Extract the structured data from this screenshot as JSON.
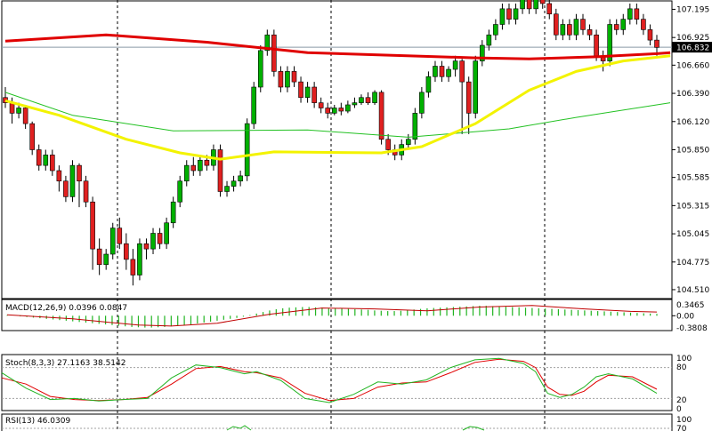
{
  "chart_data": {
    "type": "candlestick",
    "price_panel": {
      "ylim": [
        104.45,
        107.25
      ],
      "yticks": [
        "107.195",
        "106.925",
        "106.660",
        "106.390",
        "106.120",
        "105.850",
        "105.585",
        "105.315",
        "105.045",
        "104.775",
        "104.510"
      ],
      "current_price": "106.832",
      "level_line": 106.832,
      "candles": [
        [
          106.35,
          106.3,
          106.45,
          106.25
        ],
        [
          106.3,
          106.2,
          106.35,
          106.1
        ],
        [
          106.2,
          106.25,
          106.3,
          106.15
        ],
        [
          106.25,
          106.1,
          106.28,
          106.05
        ],
        [
          106.1,
          105.85,
          106.12,
          105.8
        ],
        [
          105.85,
          105.7,
          105.9,
          105.65
        ],
        [
          105.7,
          105.8,
          105.85,
          105.65
        ],
        [
          105.8,
          105.65,
          105.85,
          105.6
        ],
        [
          105.65,
          105.55,
          105.7,
          105.45
        ],
        [
          105.55,
          105.4,
          105.6,
          105.35
        ],
        [
          105.4,
          105.7,
          105.75,
          105.35
        ],
        [
          105.7,
          105.55,
          105.72,
          105.3
        ],
        [
          105.55,
          105.35,
          105.6,
          105.3
        ],
        [
          105.35,
          104.9,
          105.4,
          104.7
        ],
        [
          104.9,
          104.75,
          105.0,
          104.65
        ],
        [
          104.75,
          104.85,
          104.9,
          104.7
        ],
        [
          104.85,
          105.1,
          105.15,
          104.8
        ],
        [
          105.1,
          104.95,
          105.2,
          104.9
        ],
        [
          104.95,
          104.8,
          105.05,
          104.7
        ],
        [
          104.8,
          104.65,
          104.9,
          104.55
        ],
        [
          104.65,
          104.95,
          105.0,
          104.6
        ],
        [
          104.95,
          104.9,
          105.0,
          104.8
        ],
        [
          104.9,
          105.05,
          105.1,
          104.85
        ],
        [
          105.05,
          104.95,
          105.1,
          104.9
        ],
        [
          104.95,
          105.15,
          105.2,
          104.9
        ],
        [
          105.15,
          105.35,
          105.4,
          105.1
        ],
        [
          105.35,
          105.55,
          105.6,
          105.3
        ],
        [
          105.55,
          105.7,
          105.75,
          105.5
        ],
        [
          105.7,
          105.65,
          105.78,
          105.6
        ],
        [
          105.65,
          105.75,
          105.8,
          105.6
        ],
        [
          105.75,
          105.7,
          105.8,
          105.65
        ],
        [
          105.7,
          105.85,
          105.9,
          105.65
        ],
        [
          105.85,
          105.45,
          105.9,
          105.4
        ],
        [
          105.45,
          105.5,
          105.55,
          105.4
        ],
        [
          105.5,
          105.55,
          105.6,
          105.45
        ],
        [
          105.55,
          105.6,
          105.65,
          105.5
        ],
        [
          105.6,
          106.1,
          106.15,
          105.55
        ],
        [
          106.1,
          106.45,
          106.5,
          106.05
        ],
        [
          106.45,
          106.8,
          106.85,
          106.4
        ],
        [
          106.8,
          106.95,
          107.0,
          106.75
        ],
        [
          106.95,
          106.6,
          107.0,
          106.55
        ],
        [
          106.6,
          106.45,
          106.65,
          106.4
        ],
        [
          106.45,
          106.6,
          106.65,
          106.4
        ],
        [
          106.6,
          106.5,
          106.65,
          106.45
        ],
        [
          106.5,
          106.35,
          106.55,
          106.3
        ],
        [
          106.35,
          106.45,
          106.5,
          106.3
        ],
        [
          106.45,
          106.3,
          106.5,
          106.25
        ],
        [
          106.3,
          106.25,
          106.35,
          106.2
        ],
        [
          106.25,
          106.2,
          106.3,
          106.15
        ],
        [
          106.2,
          106.25,
          106.28,
          106.18
        ],
        [
          106.25,
          106.22,
          106.3,
          106.18
        ],
        [
          106.22,
          106.28,
          106.32,
          106.2
        ],
        [
          106.28,
          106.3,
          106.35,
          106.25
        ],
        [
          106.3,
          106.35,
          106.38,
          106.28
        ],
        [
          106.35,
          106.3,
          106.4,
          106.28
        ],
        [
          106.3,
          106.4,
          106.42,
          106.28
        ],
        [
          106.4,
          105.95,
          106.42,
          105.9
        ],
        [
          105.95,
          105.85,
          106.0,
          105.8
        ],
        [
          105.85,
          105.8,
          105.9,
          105.75
        ],
        [
          105.8,
          105.9,
          105.95,
          105.75
        ],
        [
          105.9,
          105.95,
          106.0,
          105.85
        ],
        [
          105.95,
          106.2,
          106.25,
          105.9
        ],
        [
          106.2,
          106.4,
          106.45,
          106.15
        ],
        [
          106.4,
          106.55,
          106.6,
          106.35
        ],
        [
          106.55,
          106.65,
          106.7,
          106.5
        ],
        [
          106.65,
          106.55,
          106.7,
          106.5
        ],
        [
          106.55,
          106.62,
          106.65,
          106.5
        ],
        [
          106.62,
          106.7,
          106.75,
          106.55
        ],
        [
          106.7,
          106.5,
          106.72,
          106.0
        ],
        [
          106.5,
          106.2,
          106.55,
          106.0
        ],
        [
          106.2,
          106.7,
          106.75,
          106.15
        ],
        [
          106.7,
          106.85,
          106.9,
          106.65
        ],
        [
          106.85,
          106.95,
          107.0,
          106.8
        ],
        [
          106.95,
          107.05,
          107.1,
          106.9
        ],
        [
          107.05,
          107.2,
          107.25,
          107.0
        ],
        [
          107.2,
          107.1,
          107.25,
          107.05
        ],
        [
          107.1,
          107.2,
          107.25,
          107.05
        ],
        [
          107.2,
          107.3,
          107.35,
          107.15
        ],
        [
          107.3,
          107.2,
          107.35,
          107.15
        ],
        [
          107.2,
          107.3,
          107.35,
          107.15
        ],
        [
          107.3,
          107.25,
          107.35,
          107.2
        ],
        [
          107.25,
          107.15,
          107.3,
          107.1
        ],
        [
          107.15,
          106.95,
          107.2,
          106.9
        ],
        [
          106.95,
          107.05,
          107.1,
          106.9
        ],
        [
          107.05,
          106.95,
          107.1,
          106.9
        ],
        [
          106.95,
          107.1,
          107.15,
          106.9
        ],
        [
          107.1,
          107.0,
          107.15,
          106.95
        ],
        [
          107.0,
          106.95,
          107.05,
          106.9
        ],
        [
          106.95,
          106.75,
          107.0,
          106.7
        ],
        [
          106.75,
          106.7,
          106.8,
          106.6
        ],
        [
          106.7,
          107.05,
          107.1,
          106.65
        ],
        [
          107.05,
          107.0,
          107.1,
          106.95
        ],
        [
          107.0,
          107.1,
          107.15,
          106.95
        ],
        [
          107.1,
          107.2,
          107.25,
          107.05
        ],
        [
          107.2,
          107.1,
          107.25,
          107.05
        ],
        [
          107.1,
          107.0,
          107.15,
          106.95
        ],
        [
          107.0,
          106.9,
          107.05,
          106.85
        ],
        [
          106.9,
          106.83,
          106.95,
          106.75
        ]
      ],
      "ma_slow": [
        [
          0,
          106.89
        ],
        [
          15,
          106.95
        ],
        [
          30,
          106.88
        ],
        [
          45,
          106.78
        ],
        [
          55,
          106.76
        ],
        [
          70,
          106.73
        ],
        [
          78,
          106.72
        ],
        [
          88,
          106.74
        ],
        [
          97,
          106.77
        ],
        [
          99,
          106.78
        ]
      ],
      "ma_medium": [
        [
          0,
          106.32
        ],
        [
          8,
          106.18
        ],
        [
          18,
          105.95
        ],
        [
          26,
          105.82
        ],
        [
          32,
          105.76
        ],
        [
          40,
          105.83
        ],
        [
          56,
          105.82
        ],
        [
          62,
          105.88
        ],
        [
          70,
          106.1
        ],
        [
          78,
          106.42
        ],
        [
          85,
          106.6
        ],
        [
          92,
          106.7
        ],
        [
          99,
          106.75
        ]
      ],
      "ma_fast": [
        [
          0,
          106.4
        ],
        [
          10,
          106.18
        ],
        [
          25,
          106.03
        ],
        [
          45,
          106.04
        ],
        [
          60,
          105.97
        ],
        [
          75,
          106.05
        ],
        [
          85,
          106.16
        ],
        [
          99,
          106.3
        ]
      ]
    },
    "macd_panel": {
      "label": "MACD(12,26,9) 0.0396 0.0847",
      "ylim": [
        -0.42,
        0.38
      ],
      "yticks": [
        "0.3465",
        "0.00",
        "-0.3808"
      ],
      "histogram": [
        0.02,
        0.0,
        -0.02,
        -0.04,
        -0.06,
        -0.08,
        -0.1,
        -0.12,
        -0.14,
        -0.16,
        -0.18,
        -0.2,
        -0.22,
        -0.24,
        -0.26,
        -0.28,
        -0.3,
        -0.32,
        -0.34,
        -0.36,
        -0.37,
        -0.38,
        -0.38,
        -0.37,
        -0.36,
        -0.34,
        -0.32,
        -0.3,
        -0.28,
        -0.25,
        -0.22,
        -0.19,
        -0.16,
        -0.13,
        -0.1,
        -0.07,
        -0.03,
        0.02,
        0.07,
        0.12,
        0.17,
        0.21,
        0.24,
        0.26,
        0.27,
        0.28,
        0.28,
        0.27,
        0.26,
        0.25,
        0.24,
        0.23,
        0.22,
        0.21,
        0.2,
        0.19,
        0.17,
        0.16,
        0.15,
        0.15,
        0.16,
        0.18,
        0.2,
        0.22,
        0.24,
        0.25,
        0.26,
        0.27,
        0.28,
        0.29,
        0.3,
        0.31,
        0.32,
        0.32,
        0.31,
        0.3,
        0.29,
        0.28,
        0.27,
        0.26,
        0.25,
        0.24,
        0.23,
        0.22,
        0.21,
        0.2,
        0.19,
        0.18,
        0.17,
        0.16,
        0.15,
        0.14,
        0.13,
        0.12,
        0.11,
        0.1,
        0.09,
        0.08,
        0.07,
        0.06
      ],
      "signal": [
        [
          0,
          0.03
        ],
        [
          10,
          -0.1
        ],
        [
          20,
          -0.3
        ],
        [
          25,
          -0.33
        ],
        [
          32,
          -0.24
        ],
        [
          40,
          0.05
        ],
        [
          48,
          0.25
        ],
        [
          56,
          0.22
        ],
        [
          64,
          0.16
        ],
        [
          72,
          0.28
        ],
        [
          80,
          0.33
        ],
        [
          88,
          0.22
        ],
        [
          95,
          0.14
        ],
        [
          99,
          0.12
        ]
      ]
    },
    "stoch_panel": {
      "label": "Stoch(8,3,3) 27.1163 38.5142",
      "ylim": [
        0,
        100
      ],
      "yticks": [
        "100",
        "80",
        "20",
        "0"
      ],
      "main": [
        [
          0,
          70
        ],
        [
          4,
          40
        ],
        [
          8,
          18
        ],
        [
          12,
          20
        ],
        [
          16,
          15
        ],
        [
          20,
          18
        ],
        [
          24,
          20
        ],
        [
          28,
          60
        ],
        [
          32,
          85
        ],
        [
          36,
          80
        ],
        [
          40,
          68
        ],
        [
          42,
          72
        ],
        [
          46,
          55
        ],
        [
          50,
          20
        ],
        [
          54,
          12
        ],
        [
          58,
          28
        ],
        [
          62,
          52
        ],
        [
          66,
          48
        ],
        [
          70,
          56
        ],
        [
          74,
          80
        ],
        [
          78,
          95
        ],
        [
          82,
          98
        ],
        [
          86,
          88
        ],
        [
          88,
          72
        ],
        [
          90,
          30
        ],
        [
          92,
          22
        ],
        [
          94,
          28
        ],
        [
          96,
          42
        ],
        [
          98,
          62
        ],
        [
          100,
          68
        ],
        [
          104,
          58
        ],
        [
          108,
          30
        ]
      ],
      "signal": [
        [
          0,
          60
        ],
        [
          4,
          48
        ],
        [
          8,
          24
        ],
        [
          12,
          18
        ],
        [
          16,
          16
        ],
        [
          20,
          18
        ],
        [
          24,
          22
        ],
        [
          28,
          48
        ],
        [
          32,
          78
        ],
        [
          36,
          82
        ],
        [
          40,
          72
        ],
        [
          42,
          70
        ],
        [
          46,
          60
        ],
        [
          50,
          30
        ],
        [
          54,
          16
        ],
        [
          58,
          20
        ],
        [
          62,
          42
        ],
        [
          66,
          50
        ],
        [
          70,
          52
        ],
        [
          74,
          70
        ],
        [
          78,
          90
        ],
        [
          82,
          96
        ],
        [
          86,
          92
        ],
        [
          88,
          80
        ],
        [
          90,
          42
        ],
        [
          92,
          28
        ],
        [
          94,
          26
        ],
        [
          96,
          34
        ],
        [
          98,
          52
        ],
        [
          100,
          65
        ],
        [
          104,
          62
        ],
        [
          108,
          38
        ]
      ]
    },
    "rsi_panel": {
      "label": "RSI(13) 46.0309",
      "yticks": [
        "100",
        "70"
      ]
    }
  }
}
